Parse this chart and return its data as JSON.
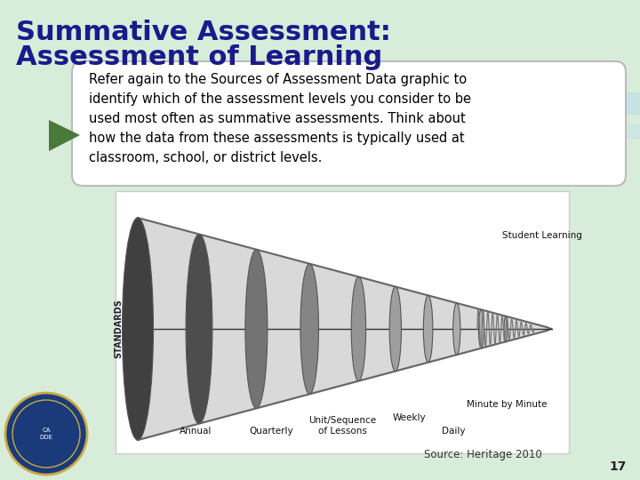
{
  "title_line1": "Summative Assessment:",
  "title_line2": "Assessment of Learning",
  "title_color": "#1a1a8c",
  "title_fontsize": 22,
  "bg_color": "#d8ecda",
  "body_text_line1": "Refer again to the Sources of Assessment Data graphic to",
  "body_text_line2": "identify which of the assessment levels you consider to be",
  "body_text_line3": "used most often as summative assessments. Think about",
  "body_text_line4": "how the data from these assessments is typically used at",
  "body_text_line5": "classroom, school, or district levels.",
  "body_fontsize": 10.5,
  "body_text_color": "#000000",
  "box_bg": "#ffffff",
  "box_border": "#aaaaaa",
  "arrow_color": "#4a7a3a",
  "source_text": "Source: Heritage 2010",
  "source_fontsize": 8.5,
  "page_number": "17",
  "page_fontsize": 10,
  "standards_label": "STANDARDS",
  "wave_color1": "#b8daea",
  "wave_color2": "#c0e0f0"
}
